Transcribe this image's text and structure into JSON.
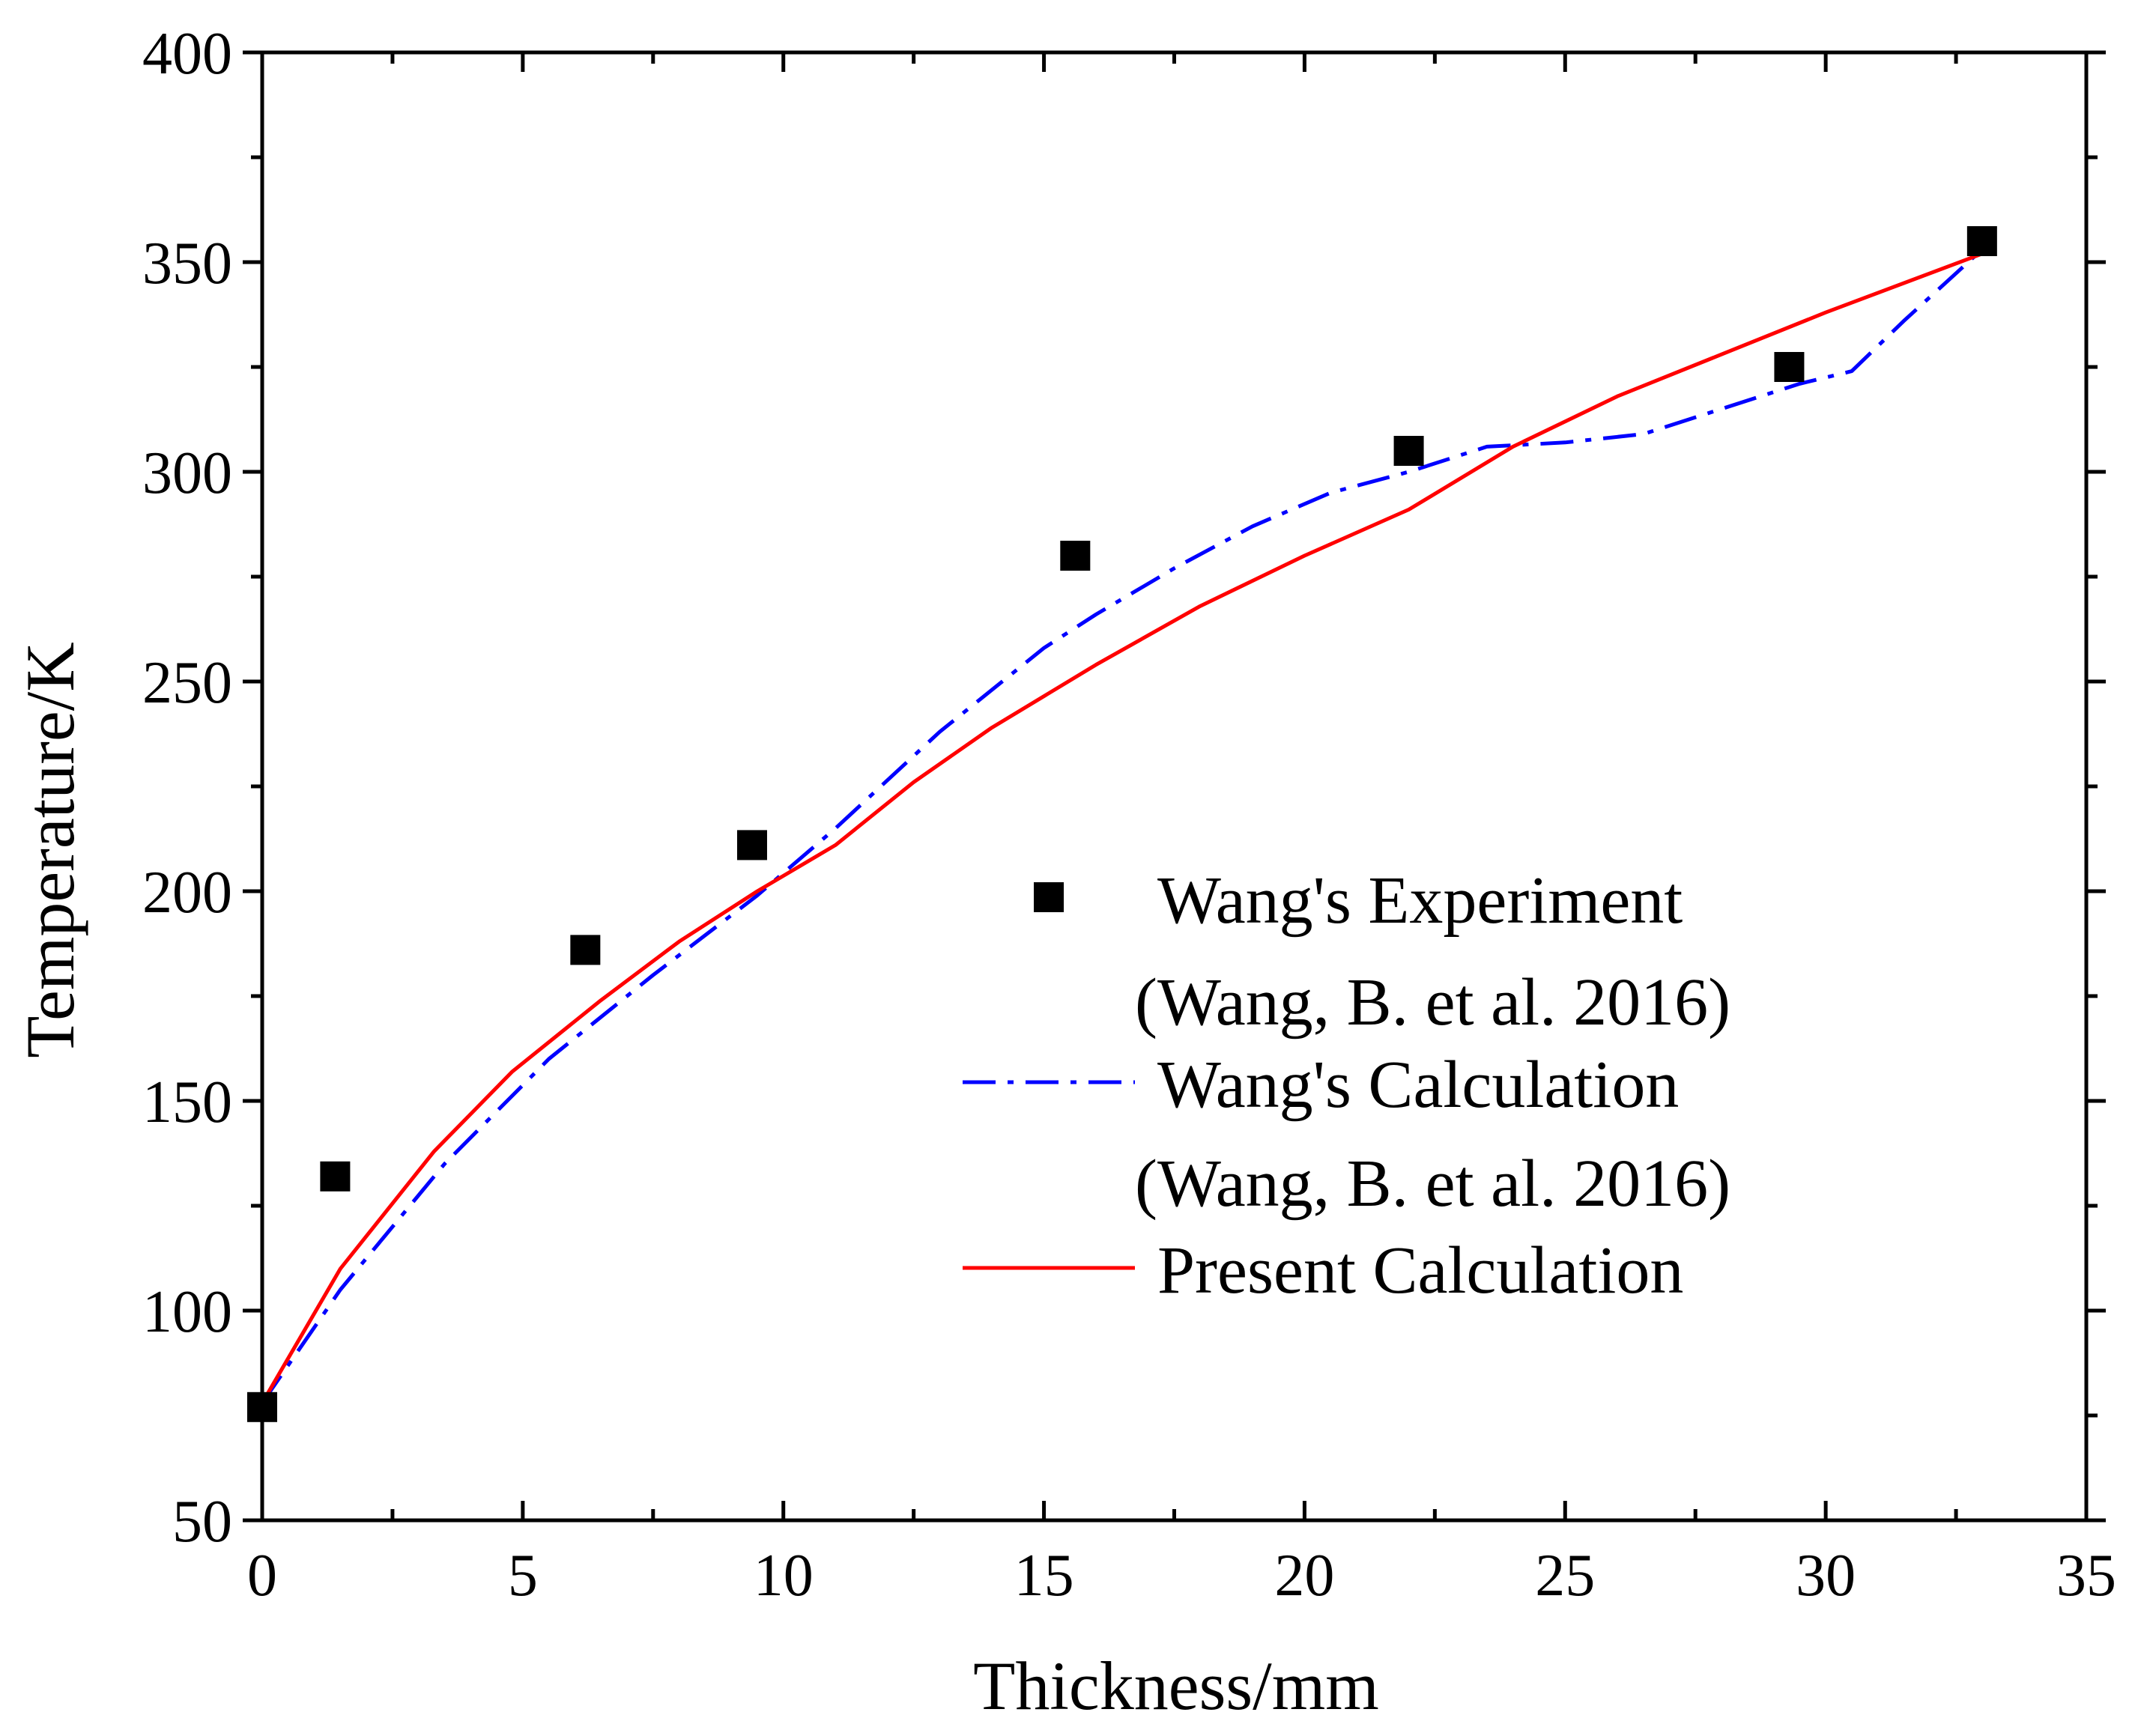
{
  "chart_data": {
    "type": "scatter",
    "title": "",
    "xlabel": "Thickness/mm",
    "ylabel": "Temperature/K",
    "xlim": [
      0,
      35
    ],
    "ylim": [
      50,
      400
    ],
    "xticks": [
      0,
      5,
      10,
      15,
      20,
      25,
      30,
      35
    ],
    "yticks": [
      50,
      100,
      150,
      200,
      250,
      300,
      350,
      400
    ],
    "grid": false,
    "legend_position": "center-right",
    "series": [
      {
        "name": "Wang's Experiment",
        "name_line2": "(Wang, B. et al. 2016)",
        "kind": "scatter",
        "marker": "square",
        "color": "#000000",
        "x": [
          0.0,
          1.4,
          6.2,
          9.4,
          15.6,
          22.0,
          29.3,
          33.0
        ],
        "y": [
          77,
          132,
          186,
          211,
          280,
          305,
          325,
          355
        ]
      },
      {
        "name": "Wang's Calculation",
        "name_line2": "(Wang, B. et al. 2016)",
        "kind": "line",
        "dash": "dash-dot",
        "color": "#0000ff",
        "x": [
          0.0,
          1.5,
          3.5,
          5.5,
          7.5,
          9.5,
          11.0,
          13.0,
          15.0,
          16.0,
          17.5,
          19.0,
          20.5,
          22.0,
          23.5,
          25.0,
          26.5,
          28.0,
          29.5,
          30.5,
          31.5,
          33.0
        ],
        "y": [
          78,
          105,
          135,
          160,
          180,
          199,
          215,
          238,
          258,
          266,
          277,
          287,
          295,
          300,
          306,
          307,
          309,
          315,
          321,
          324,
          336,
          353
        ]
      },
      {
        "name": "Present Calculation",
        "kind": "line",
        "dash": "solid",
        "color": "#ff0000",
        "x": [
          0.0,
          1.5,
          3.3,
          4.8,
          6.5,
          8.0,
          9.5,
          11.0,
          12.5,
          14.0,
          16.0,
          18.0,
          20.0,
          22.0,
          24.0,
          26.0,
          28.0,
          30.0,
          33.0
        ],
        "y": [
          78,
          110,
          138,
          157,
          174,
          188,
          200,
          211,
          226,
          239,
          254,
          268,
          280,
          291,
          306,
          318,
          328,
          338,
          352
        ]
      }
    ]
  }
}
